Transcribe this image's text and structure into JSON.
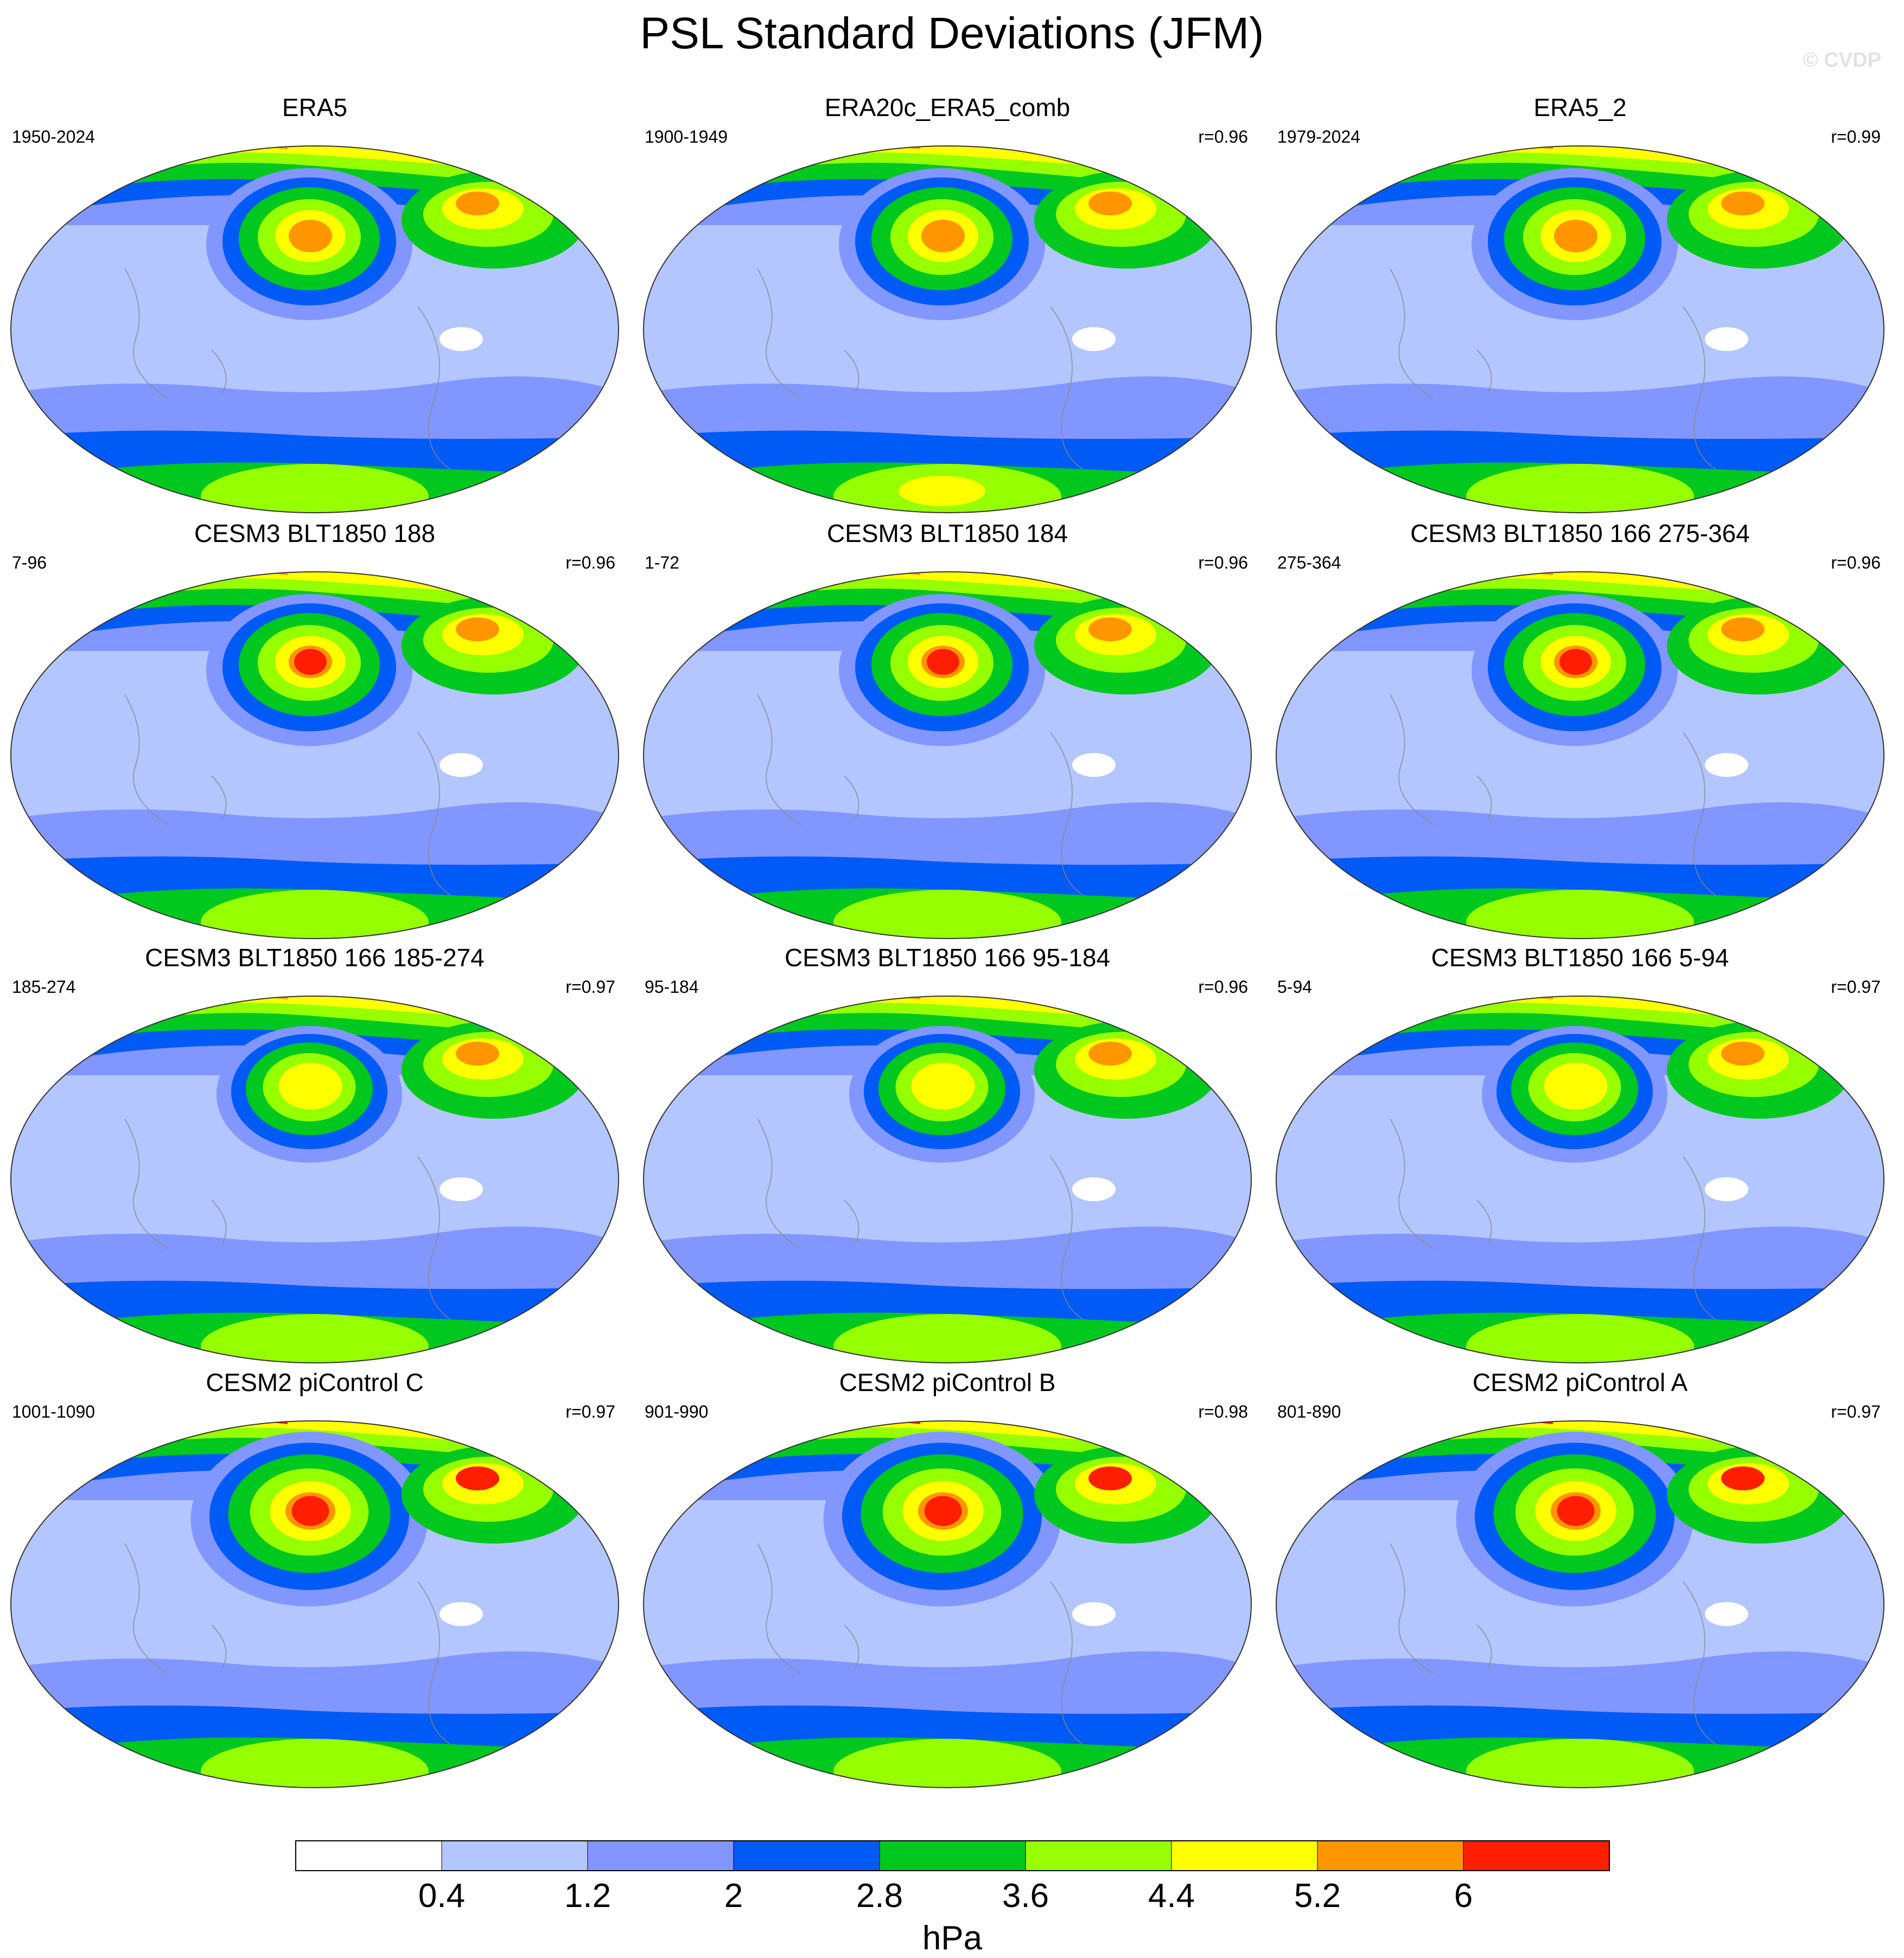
{
  "title": "PSL Standard Deviations (JFM)",
  "watermark": "© CVDP",
  "panels": [
    {
      "title": "ERA5",
      "period": "1950-2024",
      "corr": ""
    },
    {
      "title": "ERA20c_ERA5_comb",
      "period": "1900-1949",
      "corr": "r=0.96"
    },
    {
      "title": "ERA5_2",
      "period": "1979-2024",
      "corr": "r=0.99"
    },
    {
      "title": "CESM3 BLT1850 188",
      "period": "7-96",
      "corr": "r=0.96"
    },
    {
      "title": "CESM3 BLT1850 184",
      "period": "1-72",
      "corr": "r=0.96"
    },
    {
      "title": "CESM3 BLT1850 166 275-364",
      "period": "275-364",
      "corr": "r=0.96"
    },
    {
      "title": "CESM3 BLT1850 166 185-274",
      "period": "185-274",
      "corr": "r=0.97"
    },
    {
      "title": "CESM3 BLT1850 166 95-184",
      "period": "95-184",
      "corr": "r=0.96"
    },
    {
      "title": "CESM3 BLT1850 166 5-94",
      "period": "5-94",
      "corr": "r=0.97"
    },
    {
      "title": "CESM2 piControl C",
      "period": "1001-1090",
      "corr": "r=0.97"
    },
    {
      "title": "CESM2 piControl B",
      "period": "901-990",
      "corr": "r=0.98"
    },
    {
      "title": "CESM2 piControl A",
      "period": "801-890",
      "corr": "r=0.97"
    }
  ],
  "colorbar": {
    "unit": "hPa",
    "labels": [
      "0.4",
      "1.2",
      "2",
      "2.8",
      "3.6",
      "4.4",
      "5.2",
      "6"
    ],
    "colors": [
      "#ffffff",
      "#b4c6ff",
      "#8296ff",
      "#005af5",
      "#00c81e",
      "#96ff00",
      "#ffff00",
      "#ff9600",
      "#ff1e00"
    ]
  }
}
